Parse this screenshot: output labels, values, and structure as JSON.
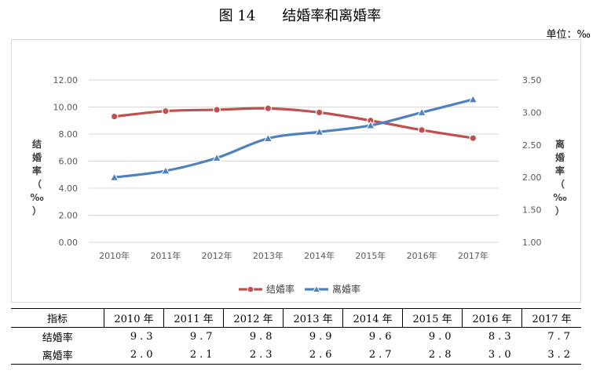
{
  "figure": {
    "number": "图 14",
    "title": "结婚率和离婚率",
    "unit": "单位：‰"
  },
  "chart_data": {
    "type": "line",
    "categories": [
      "2010年",
      "2011年",
      "2012年",
      "2013年",
      "2014年",
      "2015年",
      "2016年",
      "2017年"
    ],
    "series": [
      {
        "name": "结婚率",
        "axis": "left",
        "color": "#c0504d",
        "marker": "circle",
        "values": [
          9.3,
          9.7,
          9.8,
          9.9,
          9.6,
          9.0,
          8.3,
          7.7
        ]
      },
      {
        "name": "离婚率",
        "axis": "right",
        "color": "#4f81bd",
        "marker": "triangle",
        "values": [
          2.0,
          2.1,
          2.3,
          2.6,
          2.7,
          2.8,
          3.0,
          3.2
        ]
      }
    ],
    "ylabel_left": "结婚率（‰）",
    "ylabel_right": "离婚率（‰）",
    "ylim_left": [
      0,
      12
    ],
    "ylim_right": [
      1,
      3.5
    ],
    "yticks_left": [
      "0.00",
      "2.00",
      "4.00",
      "6.00",
      "8.00",
      "10.00",
      "12.00"
    ],
    "yticks_right": [
      "1.00",
      "1.50",
      "2.00",
      "2.50",
      "3.00",
      "3.50"
    ],
    "grid": true,
    "legend_position": "bottom"
  },
  "table": {
    "header_label": "指标",
    "years": [
      "2010 年",
      "2011 年",
      "2012 年",
      "2013 年",
      "2014 年",
      "2015 年",
      "2016 年",
      "2017 年"
    ],
    "rows": [
      {
        "label": "结婚率",
        "values": [
          "9.3",
          "9.7",
          "9.8",
          "9.9",
          "9.6",
          "9.0",
          "8.3",
          "7.7"
        ]
      },
      {
        "label": "离婚率",
        "values": [
          "2.0",
          "2.1",
          "2.3",
          "2.6",
          "2.7",
          "2.8",
          "3.0",
          "3.2"
        ]
      }
    ]
  }
}
